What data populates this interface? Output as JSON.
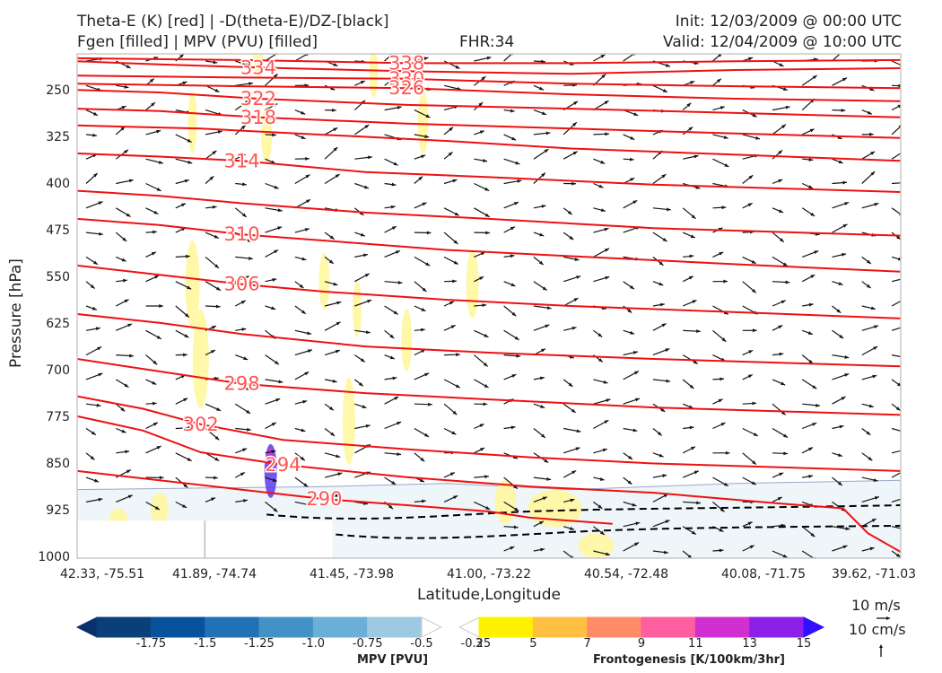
{
  "header": {
    "line1_left": "Theta-E (K) [red] | -D(theta-E)/DZ-[black]",
    "line2_left": "Fgen [filled] | MPV (PVU) [filled]",
    "fhr": "FHR:34",
    "init": "Init: 12/03/2009 @ 00:00 UTC",
    "valid": "Valid: 12/04/2009 @ 10:00 UTC"
  },
  "chart_data": {
    "type": "cross-section",
    "xlabel": "Latitude,Longitude",
    "ylabel": "Pressure [hPa]",
    "y_ticks": [
      "250",
      "325",
      "400",
      "475",
      "550",
      "625",
      "700",
      "775",
      "850",
      "925",
      "1000"
    ],
    "y_values": [
      250,
      325,
      400,
      475,
      550,
      625,
      700,
      775,
      850,
      925,
      1000
    ],
    "ylim": [
      1000,
      190
    ],
    "x_ticks": [
      "42.33, -75.51",
      "41.89, -74.74",
      "41.45, -73.98",
      "41.00, -73.22",
      "40.54, -72.48",
      "40.08, -71.75",
      "39.62, -71.03"
    ],
    "theta_e_contours": [
      {
        "label": "338",
        "pts": [
          [
            0,
            197
          ],
          [
            0.2,
            200
          ],
          [
            0.4,
            205
          ],
          [
            0.6,
            205
          ],
          [
            0.8,
            202
          ],
          [
            1,
            200
          ]
        ]
      },
      {
        "label": "334",
        "pts": [
          [
            0,
            202
          ],
          [
            0.1,
            207
          ],
          [
            0.22,
            212
          ],
          [
            0.4,
            218
          ],
          [
            0.6,
            222
          ],
          [
            0.8,
            216
          ],
          [
            1,
            213
          ]
        ]
      },
      {
        "label": "330",
        "pts": [
          [
            0,
            225
          ],
          [
            0.2,
            228
          ],
          [
            0.4,
            230
          ],
          [
            0.6,
            238
          ],
          [
            0.8,
            242
          ],
          [
            1,
            245
          ]
        ]
      },
      {
        "label": "326",
        "pts": [
          [
            0,
            238
          ],
          [
            0.2,
            242
          ],
          [
            0.4,
            245
          ],
          [
            0.6,
            255
          ],
          [
            0.8,
            262
          ],
          [
            1,
            266
          ]
        ]
      },
      {
        "label": "322",
        "pts": [
          [
            0,
            248
          ],
          [
            0.1,
            252
          ],
          [
            0.22,
            262
          ],
          [
            0.4,
            272
          ],
          [
            0.6,
            278
          ],
          [
            0.8,
            285
          ],
          [
            1,
            292
          ]
        ]
      },
      {
        "label": "318",
        "pts": [
          [
            0,
            278
          ],
          [
            0.1,
            282
          ],
          [
            0.22,
            292
          ],
          [
            0.4,
            302
          ],
          [
            0.6,
            310
          ],
          [
            0.8,
            318
          ],
          [
            1,
            325
          ]
        ]
      },
      {
        "label": "",
        "pts": [
          [
            0,
            305
          ],
          [
            0.15,
            310
          ],
          [
            0.3,
            320
          ],
          [
            0.45,
            330
          ],
          [
            0.6,
            342
          ],
          [
            0.8,
            352
          ],
          [
            1,
            362
          ]
        ]
      },
      {
        "label": "314",
        "pts": [
          [
            0,
            350
          ],
          [
            0.1,
            355
          ],
          [
            0.2,
            362
          ],
          [
            0.35,
            380
          ],
          [
            0.5,
            388
          ],
          [
            0.7,
            400
          ],
          [
            1,
            412
          ]
        ]
      },
      {
        "label": "",
        "pts": [
          [
            0,
            410
          ],
          [
            0.1,
            418
          ],
          [
            0.2,
            430
          ],
          [
            0.35,
            445
          ],
          [
            0.5,
            455
          ],
          [
            0.7,
            470
          ],
          [
            1,
            482
          ]
        ]
      },
      {
        "label": "310",
        "pts": [
          [
            0,
            455
          ],
          [
            0.1,
            465
          ],
          [
            0.2,
            480
          ],
          [
            0.3,
            490
          ],
          [
            0.45,
            505
          ],
          [
            0.6,
            515
          ],
          [
            0.8,
            528
          ],
          [
            1,
            540
          ]
        ]
      },
      {
        "label": "306",
        "pts": [
          [
            0,
            530
          ],
          [
            0.1,
            545
          ],
          [
            0.2,
            560
          ],
          [
            0.3,
            572
          ],
          [
            0.45,
            585
          ],
          [
            0.6,
            595
          ],
          [
            0.8,
            605
          ],
          [
            1,
            615
          ]
        ]
      },
      {
        "label": "",
        "pts": [
          [
            0,
            608
          ],
          [
            0.1,
            622
          ],
          [
            0.2,
            640
          ],
          [
            0.35,
            660
          ],
          [
            0.5,
            670
          ],
          [
            0.7,
            680
          ],
          [
            1,
            692
          ]
        ]
      },
      {
        "label": "298",
        "pts": [
          [
            0,
            680
          ],
          [
            0.1,
            700
          ],
          [
            0.2,
            720
          ],
          [
            0.35,
            735
          ],
          [
            0.5,
            745
          ],
          [
            0.7,
            758
          ],
          [
            1,
            770
          ]
        ]
      },
      {
        "label": "302",
        "pts": [
          [
            0,
            740
          ],
          [
            0.08,
            760
          ],
          [
            0.15,
            785
          ],
          [
            0.25,
            810
          ],
          [
            0.4,
            825
          ],
          [
            0.55,
            838
          ],
          [
            0.7,
            848
          ],
          [
            1,
            860
          ]
        ]
      },
      {
        "label": "294",
        "pts": [
          [
            0,
            772
          ],
          [
            0.08,
            795
          ],
          [
            0.15,
            830
          ],
          [
            0.25,
            850
          ],
          [
            0.4,
            870
          ],
          [
            0.55,
            885
          ],
          [
            0.7,
            895
          ],
          [
            0.85,
            912
          ],
          [
            0.93,
            920
          ],
          [
            0.96,
            960
          ],
          [
            1,
            990
          ]
        ]
      },
      {
        "label": "290",
        "pts": [
          [
            0,
            860
          ],
          [
            0.1,
            875
          ],
          [
            0.2,
            890
          ],
          [
            0.3,
            905
          ],
          [
            0.4,
            915
          ],
          [
            0.5,
            925
          ],
          [
            0.55,
            935
          ],
          [
            0.6,
            940
          ],
          [
            0.65,
            945
          ]
        ]
      }
    ],
    "mpv_colorbar": {
      "label": "MPV [PVU]",
      "ticks": [
        "-1.75",
        "-1.5",
        "-1.25",
        "-1.0",
        "-0.75",
        "-0.5",
        "-0.25"
      ],
      "colors": [
        "#08306b",
        "#0b3f7a",
        "#08519c",
        "#2171b5",
        "#4292c6",
        "#6baed6",
        "#9ecae1",
        "#ffffff"
      ]
    },
    "fgen_colorbar": {
      "label": "Frontogenesis [K/100km/3hr]",
      "ticks": [
        "3",
        "5",
        "7",
        "9",
        "11",
        "13",
        "15"
      ],
      "colors": [
        "#ffffff",
        "#fff200",
        "#ffbf40",
        "#ff8c66",
        "#ff5fa0",
        "#d030d0",
        "#8c20e8",
        "#3010ff"
      ]
    },
    "wind_scale": {
      "horizontal": "10 m/s",
      "vertical": "10 cm/s"
    }
  }
}
